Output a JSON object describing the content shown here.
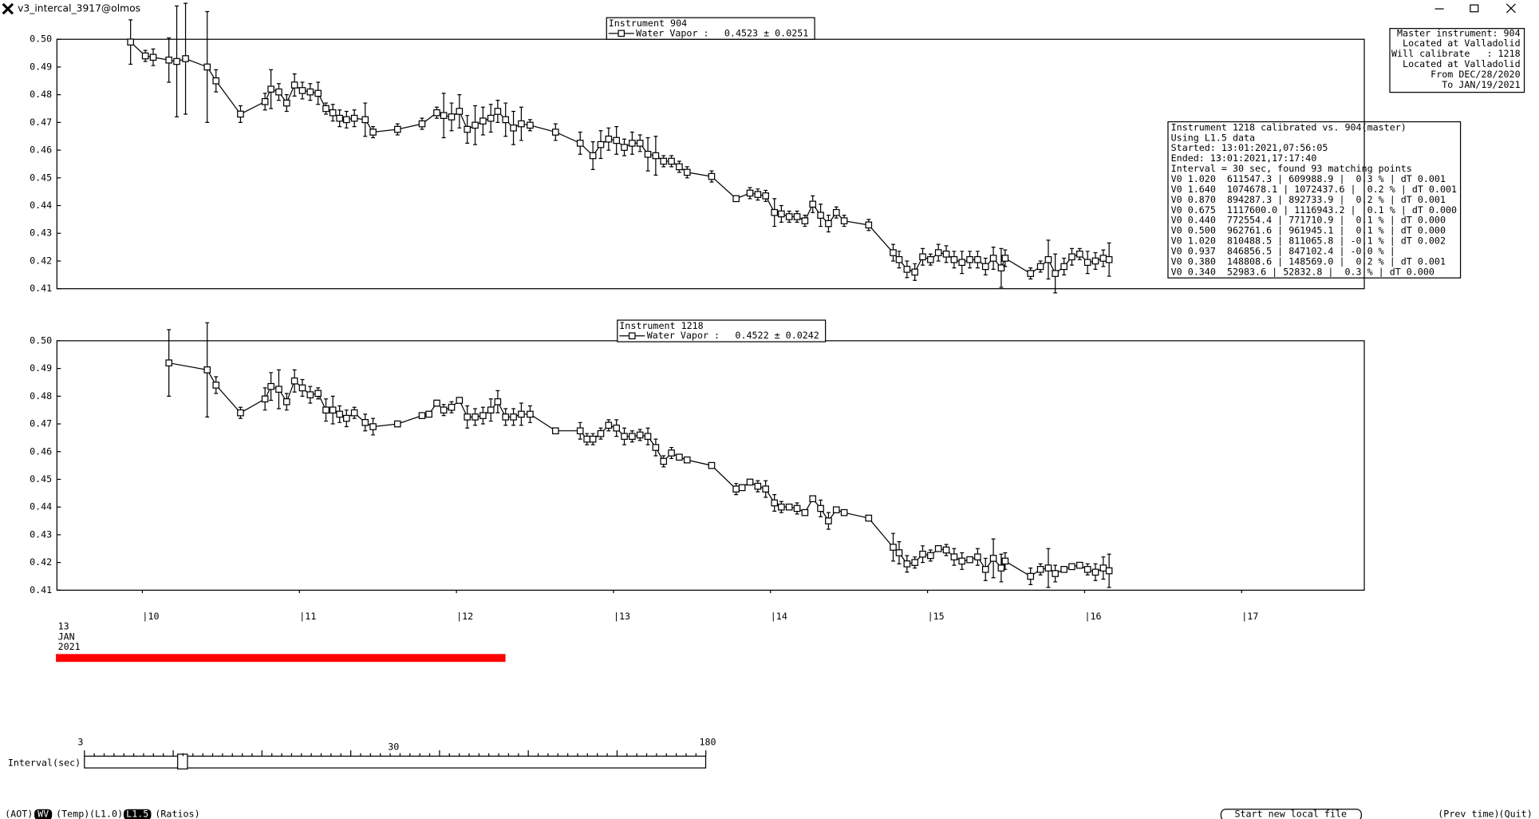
{
  "window": {
    "title": "v3_intercal_3917@olmos"
  },
  "chart_data": [
    {
      "type": "line",
      "legend_title": "Instrument 904",
      "mean_label": "0.4523 ± 0.0251",
      "xlim": [
        9.456,
        17.781
      ],
      "ylim": [
        0.41,
        0.5
      ],
      "yticks": [
        0.41,
        0.42,
        0.43,
        0.44,
        0.45,
        0.46,
        0.47,
        0.48,
        0.49,
        {
          "value": 0.5,
          "label": "0.50"
        }
      ],
      "x": [
        9.925,
        10.019,
        10.069,
        10.169,
        10.219,
        10.275,
        10.413,
        10.469,
        10.625,
        10.781,
        10.819,
        10.869,
        10.919,
        10.969,
        11.019,
        11.069,
        11.119,
        11.169,
        11.213,
        11.256,
        11.3,
        11.35,
        11.419,
        11.469,
        11.625,
        11.781,
        11.875,
        11.919,
        11.969,
        12.019,
        12.069,
        12.119,
        12.169,
        12.219,
        12.263,
        12.313,
        12.363,
        12.413,
        12.469,
        12.631,
        12.788,
        12.869,
        12.919,
        12.969,
        13.019,
        13.069,
        13.119,
        13.169,
        13.219,
        13.269,
        13.319,
        13.369,
        13.419,
        13.469,
        13.625,
        13.781,
        13.869,
        13.919,
        13.969,
        14.025,
        14.069,
        14.119,
        14.169,
        14.219,
        14.269,
        14.319,
        14.369,
        14.419,
        14.469,
        14.625,
        14.781,
        14.819,
        14.869,
        14.919,
        14.969,
        15.019,
        15.069,
        15.119,
        15.169,
        15.219,
        15.269,
        15.319,
        15.369,
        15.419,
        15.469,
        15.494,
        15.656,
        15.719,
        15.769,
        15.813,
        15.869,
        15.919,
        15.969,
        16.019,
        16.069,
        16.119,
        16.156
      ],
      "series": [
        {
          "name": "Water Vapor :",
          "color": "#000000",
          "values": [
            0.499,
            0.494,
            0.4935,
            0.4925,
            0.492,
            0.493,
            0.49,
            0.485,
            0.473,
            0.4775,
            0.482,
            0.481,
            0.477,
            0.4835,
            0.4815,
            0.481,
            0.4805,
            0.475,
            0.4735,
            0.4715,
            0.471,
            0.4715,
            0.471,
            0.4665,
            0.4675,
            0.4695,
            0.4735,
            0.4725,
            0.472,
            0.474,
            0.4675,
            0.469,
            0.4705,
            0.4715,
            0.474,
            0.471,
            0.468,
            0.4695,
            0.469,
            0.4665,
            0.4625,
            0.458,
            0.462,
            0.464,
            0.4635,
            0.461,
            0.4625,
            0.4625,
            0.4585,
            0.458,
            0.456,
            0.456,
            0.454,
            0.452,
            0.4505,
            0.4425,
            0.4445,
            0.444,
            0.4435,
            0.4375,
            0.437,
            0.436,
            0.436,
            0.4345,
            0.4405,
            0.4365,
            0.4335,
            0.4375,
            0.4345,
            0.433,
            0.423,
            0.4205,
            0.417,
            0.416,
            0.4215,
            0.4205,
            0.423,
            0.4225,
            0.4205,
            0.4195,
            0.4205,
            0.4205,
            0.418,
            0.421,
            0.4175,
            0.421,
            0.4155,
            0.418,
            0.4205,
            0.4155,
            0.418,
            0.4215,
            0.4225,
            0.4195,
            0.42,
            0.421,
            0.4205
          ],
          "errors": [
            0.008,
            0.002,
            0.003,
            0.008,
            0.02,
            0.02,
            0.02,
            0.004,
            0.003,
            0.003,
            0.007,
            0.003,
            0.003,
            0.004,
            0.003,
            0.003,
            0.004,
            0.002,
            0.003,
            0.003,
            0.003,
            0.003,
            0.006,
            0.002,
            0.002,
            0.002,
            0.002,
            0.008,
            0.005,
            0.006,
            0.005,
            0.007,
            0.005,
            0.005,
            0.004,
            0.006,
            0.006,
            0.006,
            0.002,
            0.003,
            0.004,
            0.005,
            0.005,
            0.004,
            0.005,
            0.003,
            0.004,
            0.003,
            0.006,
            0.007,
            0.002,
            0.002,
            0.002,
            0.002,
            0.002,
            0.001,
            0.002,
            0.002,
            0.002,
            0.005,
            0.003,
            0.002,
            0.002,
            0.002,
            0.003,
            0.004,
            0.003,
            0.002,
            0.002,
            0.002,
            0.003,
            0.003,
            0.003,
            0.003,
            0.003,
            0.002,
            0.003,
            0.003,
            0.003,
            0.004,
            0.003,
            0.003,
            0.003,
            0.004,
            0.007,
            0.003,
            0.002,
            0.002,
            0.007,
            0.007,
            0.003,
            0.003,
            0.002,
            0.004,
            0.003,
            0.003,
            0.006
          ]
        }
      ]
    },
    {
      "type": "line",
      "legend_title": "Instrument 1218",
      "mean_label": "0.4522 ± 0.0242",
      "xlim": [
        9.456,
        17.781
      ],
      "ylim": [
        0.41,
        0.5
      ],
      "yticks": [
        0.41,
        0.42,
        0.43,
        0.44,
        0.45,
        0.46,
        0.47,
        0.48,
        0.49,
        {
          "value": 0.5,
          "label": "0.50"
        }
      ],
      "xticks": [
        {
          "value": 10,
          "label": "|10"
        },
        {
          "value": 11,
          "label": "|11"
        },
        {
          "value": 12,
          "label": "|12"
        },
        {
          "value": 13,
          "label": "|13"
        },
        {
          "value": 14,
          "label": "|14"
        },
        {
          "value": 15,
          "label": "|15"
        },
        {
          "value": 16,
          "label": "|16"
        },
        {
          "value": 17,
          "label": "|17"
        }
      ],
      "date_label": [
        "13",
        "JAN",
        "2021"
      ],
      "x": [
        10.169,
        10.413,
        10.469,
        10.625,
        10.781,
        10.819,
        10.869,
        10.919,
        10.969,
        11.019,
        11.069,
        11.119,
        11.169,
        11.213,
        11.256,
        11.3,
        11.35,
        11.419,
        11.469,
        11.625,
        11.781,
        11.825,
        11.875,
        11.919,
        11.969,
        12.019,
        12.069,
        12.119,
        12.169,
        12.219,
        12.263,
        12.313,
        12.363,
        12.413,
        12.469,
        12.631,
        12.788,
        12.831,
        12.869,
        12.919,
        12.969,
        13.019,
        13.069,
        13.119,
        13.169,
        13.219,
        13.269,
        13.319,
        13.369,
        13.419,
        13.469,
        13.625,
        13.781,
        13.819,
        13.869,
        13.919,
        13.969,
        14.025,
        14.069,
        14.119,
        14.169,
        14.219,
        14.269,
        14.319,
        14.369,
        14.419,
        14.469,
        14.625,
        14.781,
        14.819,
        14.869,
        14.919,
        14.969,
        15.019,
        15.069,
        15.119,
        15.169,
        15.219,
        15.269,
        15.319,
        15.369,
        15.419,
        15.469,
        15.494,
        15.656,
        15.719,
        15.769,
        15.813,
        15.869,
        15.919,
        15.969,
        16.019,
        16.069,
        16.119,
        16.156
      ],
      "series": [
        {
          "name": "Water Vapor :",
          "color": "#000000",
          "values": [
            0.492,
            0.4895,
            0.484,
            0.474,
            0.479,
            0.4835,
            0.4825,
            0.478,
            0.4855,
            0.483,
            0.4805,
            0.481,
            0.475,
            0.475,
            0.4735,
            0.472,
            0.474,
            0.4705,
            0.469,
            0.47,
            0.473,
            0.4735,
            0.4775,
            0.475,
            0.476,
            0.4785,
            0.4725,
            0.4725,
            0.473,
            0.475,
            0.478,
            0.4725,
            0.4725,
            0.4735,
            0.4735,
            0.4675,
            0.4675,
            0.4645,
            0.4645,
            0.4665,
            0.4695,
            0.4685,
            0.4655,
            0.4655,
            0.466,
            0.4655,
            0.4615,
            0.4565,
            0.4595,
            0.458,
            0.457,
            0.455,
            0.4465,
            0.447,
            0.449,
            0.4475,
            0.4465,
            0.4415,
            0.44,
            0.44,
            0.4395,
            0.438,
            0.443,
            0.4395,
            0.435,
            0.439,
            0.438,
            0.436,
            0.4255,
            0.4235,
            0.4195,
            0.42,
            0.423,
            0.4225,
            0.425,
            0.4245,
            0.422,
            0.4205,
            0.421,
            0.422,
            0.4175,
            0.4215,
            0.418,
            0.4205,
            0.415,
            0.4175,
            0.418,
            0.416,
            0.4175,
            0.4185,
            0.419,
            0.4175,
            0.4165,
            0.418,
            0.417
          ],
          "errors": [
            0.012,
            0.017,
            0.003,
            0.002,
            0.004,
            0.005,
            0.007,
            0.003,
            0.004,
            0.003,
            0.003,
            0.002,
            0.004,
            0.005,
            0.003,
            0.003,
            0.002,
            0.003,
            0.003,
            0.001,
            0.001,
            0.001,
            0.001,
            0.002,
            0.002,
            0.001,
            0.004,
            0.003,
            0.003,
            0.004,
            0.004,
            0.003,
            0.003,
            0.004,
            0.003,
            0.001,
            0.003,
            0.002,
            0.002,
            0.002,
            0.002,
            0.003,
            0.003,
            0.002,
            0.002,
            0.003,
            0.003,
            0.002,
            0.002,
            0.001,
            0.001,
            0.001,
            0.002,
            0.001,
            0.001,
            0.002,
            0.003,
            0.003,
            0.002,
            0.001,
            0.002,
            0.001,
            0.001,
            0.003,
            0.003,
            0.001,
            0.001,
            0.001,
            0.005,
            0.004,
            0.003,
            0.002,
            0.003,
            0.002,
            0.001,
            0.002,
            0.003,
            0.003,
            0.001,
            0.003,
            0.004,
            0.007,
            0.005,
            0.003,
            0.003,
            0.002,
            0.007,
            0.003,
            0.001,
            0.001,
            0.001,
            0.002,
            0.003,
            0.004,
            0.006
          ]
        }
      ]
    }
  ],
  "info": {
    "master": [
      "Master instrument: 904",
      "Located at Valladolid",
      "Will calibrate   : 1218",
      "Located at Valladolid",
      "From DEC/28/2020",
      "To JAN/19/2021"
    ],
    "calibration": [
      "Instrument 1218 calibrated vs. 904(master)",
      "Using L1.5 data",
      "Started: 13:01:2021,07:56:05",
      "Ended: 13:01:2021,17:17:40",
      "Interval = 30 sec, found 93 matching points",
      "V0 1.020  611547.3 | 609988.9 |  0.3 % | dT 0.001",
      "V0 1.640  1074678.1 | 1072437.6 |  0.2 % | dT 0.001",
      "V0 0.870  894287.3 | 892733.9 |  0.2 % | dT 0.001",
      "V0 0.675  1117600.0 | 1116943.2 |  0.1 % | dT 0.000",
      "V0 0.440  772554.4 | 771710.9 |  0.1 % | dT 0.000",
      "V0 0.500  962761.6 | 961945.1 |  0.1 % | dT 0.000",
      "V0 1.020  810488.5 | 811065.8 | -0.1 % | dT 0.002",
      "V0 0.937  846856.5 | 847102.4 | -0.0 % |",
      "V0 0.380  148808.6 | 148569.0 |  0.2 % | dT 0.001",
      "V0 0.340  52983.6 | 52832.8 |  0.3 % | dT 0.000"
    ]
  },
  "slider": {
    "label": "Interval(sec)",
    "ticks": [
      3,
      30,
      180
    ]
  },
  "buttons": {
    "left": [
      "(AOT)",
      "WV",
      "(Temp)",
      "(L1.0)",
      "L1.5",
      "(Ratios)"
    ],
    "new_file": "Start new local file",
    "prev": "(Prev time)",
    "quit": "(Quit)"
  }
}
